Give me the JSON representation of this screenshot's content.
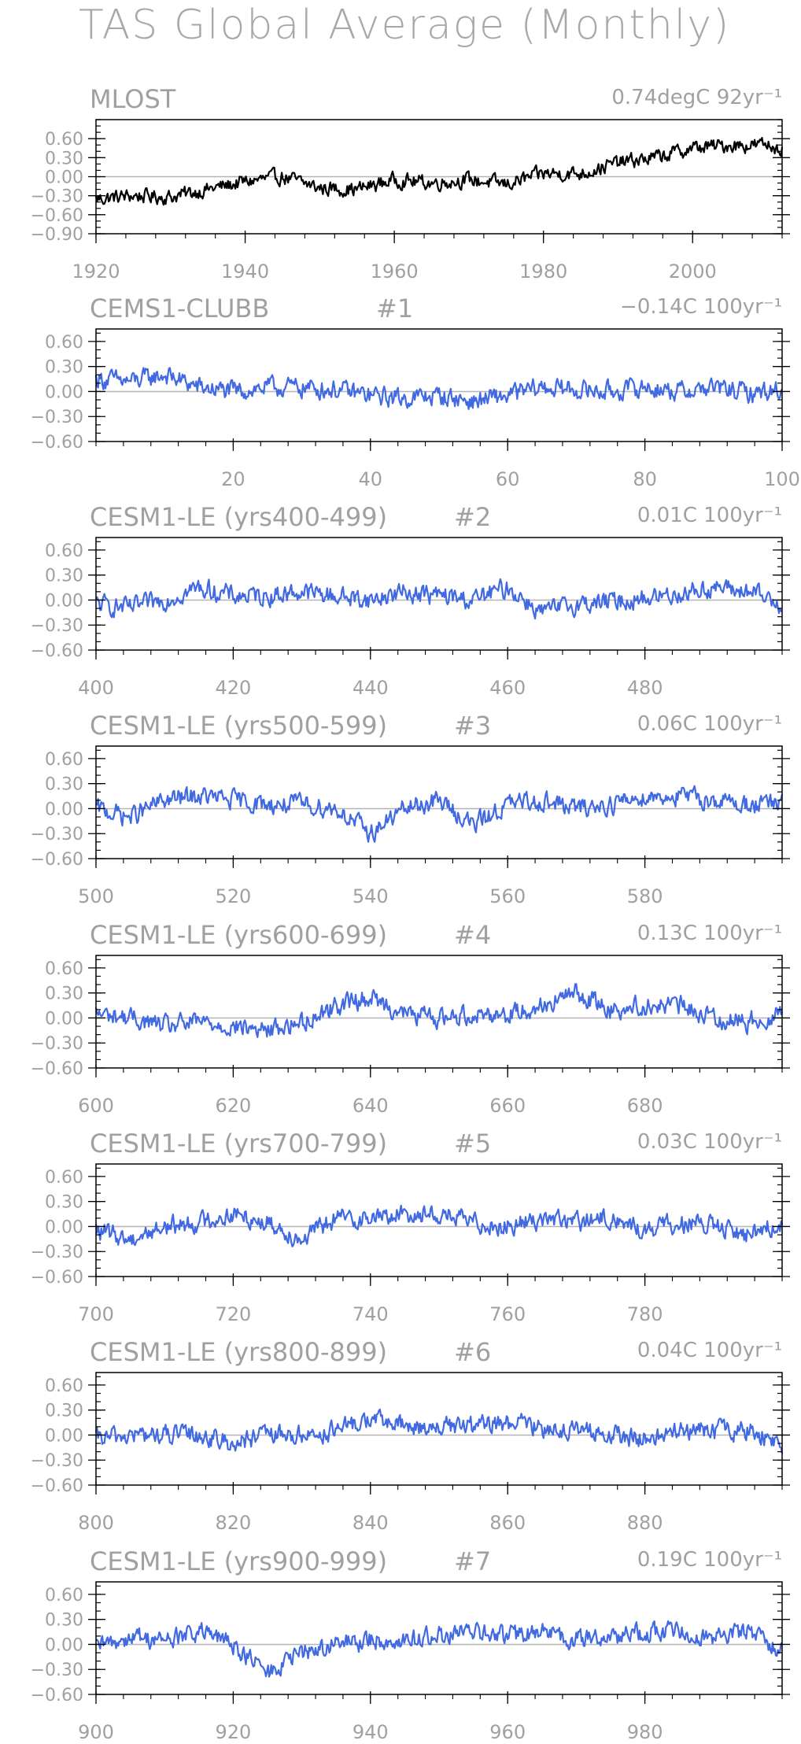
{
  "title": "TAS Global Average (Monthly)",
  "chart_data": [
    {
      "type": "line",
      "title": "MLOST",
      "trend_label": "0.74degC 92yr⁻¹",
      "color": "#000000",
      "xlim": [
        1920,
        2012
      ],
      "xticks": [
        1920,
        1940,
        1960,
        1980,
        2000
      ],
      "ylim": [
        -0.9,
        0.9
      ],
      "yticks": [
        -0.9,
        -0.6,
        -0.3,
        0.0,
        0.3,
        0.6
      ],
      "ytick_labels": [
        "−0.90",
        "−0.60",
        "−0.30",
        "0.00",
        "0.30",
        "0.60"
      ],
      "zero_line": true,
      "series": [
        {
          "x": [
            1920,
            1925,
            1930,
            1935,
            1940,
            1945,
            1950,
            1955,
            1960,
            1965,
            1970,
            1975,
            1980,
            1985,
            1990,
            1995,
            2000,
            2005,
            2010,
            2012
          ],
          "values": [
            -0.35,
            -0.3,
            -0.32,
            -0.2,
            -0.08,
            0.0,
            -0.18,
            -0.2,
            -0.05,
            -0.1,
            -0.05,
            -0.12,
            0.05,
            0.05,
            0.22,
            0.3,
            0.45,
            0.5,
            0.5,
            0.45
          ]
        }
      ]
    },
    {
      "type": "line",
      "title": "CEMS1-CLUBB",
      "member_label": "#1",
      "trend_label": "−0.14C 100yr⁻¹",
      "color": "#4169e1",
      "xlim": [
        0,
        100
      ],
      "xticks": [
        20,
        40,
        60,
        80,
        100
      ],
      "ylim": [
        -0.6,
        0.75
      ],
      "yticks": [
        -0.6,
        -0.3,
        0.0,
        0.3,
        0.6
      ],
      "ytick_labels": [
        "−0.60",
        "−0.30",
        "0.00",
        "0.30",
        "0.60"
      ],
      "zero_line": true,
      "series": [
        {
          "x": [
            0,
            5,
            10,
            15,
            20,
            25,
            30,
            35,
            40,
            45,
            50,
            55,
            60,
            65,
            70,
            75,
            80,
            85,
            90,
            95,
            100
          ],
          "values": [
            0.15,
            0.12,
            0.2,
            0.05,
            0.0,
            0.05,
            0.05,
            0.02,
            -0.05,
            -0.08,
            -0.05,
            -0.12,
            -0.05,
            0.05,
            0.02,
            0.0,
            0.05,
            0.0,
            0.05,
            -0.02,
            0.02
          ]
        }
      ]
    },
    {
      "type": "line",
      "title": "CESM1-LE (yrs400-499)",
      "member_label": "#2",
      "trend_label": "0.01C 100yr⁻¹",
      "color": "#4169e1",
      "xlim": [
        400,
        500
      ],
      "xticks": [
        400,
        420,
        440,
        460,
        480
      ],
      "ylim": [
        -0.6,
        0.75
      ],
      "yticks": [
        -0.6,
        -0.3,
        0.0,
        0.3,
        0.6
      ],
      "ytick_labels": [
        "−0.60",
        "−0.30",
        "0.00",
        "0.30",
        "0.60"
      ],
      "zero_line": true,
      "series": [
        {
          "x": [
            400,
            405,
            410,
            415,
            420,
            425,
            430,
            435,
            440,
            445,
            450,
            455,
            460,
            465,
            470,
            475,
            480,
            485,
            490,
            495,
            500
          ],
          "values": [
            -0.05,
            -0.1,
            0.0,
            0.15,
            0.05,
            0.05,
            0.1,
            0.05,
            0.0,
            0.1,
            0.05,
            0.0,
            0.15,
            -0.15,
            -0.05,
            -0.02,
            0.02,
            0.08,
            0.15,
            0.1,
            -0.05
          ]
        }
      ]
    },
    {
      "type": "line",
      "title": "CESM1-LE (yrs500-599)",
      "member_label": "#3",
      "trend_label": "0.06C 100yr⁻¹",
      "color": "#4169e1",
      "xlim": [
        500,
        600
      ],
      "xticks": [
        500,
        520,
        540,
        560,
        580
      ],
      "ylim": [
        -0.6,
        0.75
      ],
      "yticks": [
        -0.6,
        -0.3,
        0.0,
        0.3,
        0.6
      ],
      "ytick_labels": [
        "−0.60",
        "−0.30",
        "0.00",
        "0.30",
        "0.60"
      ],
      "zero_line": true,
      "series": [
        {
          "x": [
            500,
            505,
            510,
            515,
            520,
            525,
            530,
            535,
            540,
            545,
            550,
            555,
            560,
            565,
            570,
            575,
            580,
            585,
            590,
            595,
            600
          ],
          "values": [
            0.0,
            -0.1,
            0.1,
            0.15,
            0.1,
            0.05,
            0.05,
            0.0,
            -0.3,
            0.0,
            0.1,
            -0.2,
            0.05,
            0.1,
            0.0,
            0.05,
            0.15,
            0.15,
            0.1,
            0.05,
            0.05
          ]
        }
      ]
    },
    {
      "type": "line",
      "title": "CESM1-LE (yrs600-699)",
      "member_label": "#4",
      "trend_label": "0.13C 100yr⁻¹",
      "color": "#4169e1",
      "xlim": [
        600,
        700
      ],
      "xticks": [
        600,
        620,
        640,
        660,
        680
      ],
      "ylim": [
        -0.6,
        0.75
      ],
      "yticks": [
        -0.6,
        -0.3,
        0.0,
        0.3,
        0.6
      ],
      "ytick_labels": [
        "−0.60",
        "−0.30",
        "0.00",
        "0.30",
        "0.60"
      ],
      "zero_line": true,
      "series": [
        {
          "x": [
            600,
            605,
            610,
            615,
            620,
            625,
            630,
            635,
            640,
            645,
            650,
            655,
            660,
            665,
            670,
            675,
            680,
            685,
            690,
            695,
            700
          ],
          "values": [
            0.05,
            0.0,
            -0.1,
            -0.05,
            -0.1,
            -0.15,
            -0.05,
            0.15,
            0.25,
            0.05,
            0.0,
            0.05,
            0.05,
            0.15,
            0.3,
            0.1,
            0.15,
            0.15,
            0.0,
            -0.05,
            0.05
          ]
        }
      ]
    },
    {
      "type": "line",
      "title": "CESM1-LE (yrs700-799)",
      "member_label": "#5",
      "trend_label": "0.03C 100yr⁻¹",
      "color": "#4169e1",
      "xlim": [
        700,
        800
      ],
      "xticks": [
        700,
        720,
        740,
        760,
        780
      ],
      "ylim": [
        -0.6,
        0.75
      ],
      "yticks": [
        -0.6,
        -0.3,
        0.0,
        0.3,
        0.6
      ],
      "ytick_labels": [
        "−0.60",
        "−0.30",
        "0.00",
        "0.30",
        "0.60"
      ],
      "zero_line": true,
      "series": [
        {
          "x": [
            700,
            705,
            710,
            715,
            720,
            725,
            730,
            735,
            740,
            745,
            750,
            755,
            760,
            765,
            770,
            775,
            780,
            785,
            790,
            795,
            800
          ],
          "values": [
            -0.05,
            -0.15,
            0.0,
            0.05,
            0.15,
            0.05,
            -0.15,
            0.1,
            0.1,
            0.15,
            0.15,
            0.05,
            0.0,
            0.1,
            0.05,
            0.1,
            -0.05,
            0.05,
            0.0,
            -0.1,
            0.05
          ]
        }
      ]
    },
    {
      "type": "line",
      "title": "CESM1-LE (yrs800-899)",
      "member_label": "#6",
      "trend_label": "0.04C 100yr⁻¹",
      "color": "#4169e1",
      "xlim": [
        800,
        900
      ],
      "xticks": [
        800,
        820,
        840,
        860,
        880
      ],
      "ylim": [
        -0.6,
        0.75
      ],
      "yticks": [
        -0.6,
        -0.3,
        0.0,
        0.3,
        0.6
      ],
      "ytick_labels": [
        "−0.60",
        "−0.30",
        "0.00",
        "0.30",
        "0.60"
      ],
      "zero_line": true,
      "series": [
        {
          "x": [
            800,
            805,
            810,
            815,
            820,
            825,
            830,
            835,
            840,
            845,
            850,
            855,
            860,
            865,
            870,
            875,
            880,
            885,
            890,
            895,
            900
          ],
          "values": [
            -0.05,
            0.0,
            0.0,
            0.0,
            -0.1,
            0.0,
            0.0,
            0.05,
            0.2,
            0.1,
            0.1,
            0.1,
            0.15,
            0.1,
            0.05,
            0.0,
            -0.05,
            0.05,
            0.05,
            0.05,
            -0.1
          ]
        }
      ]
    },
    {
      "type": "line",
      "title": "CESM1-LE (yrs900-999)",
      "member_label": "#7",
      "trend_label": "0.19C 100yr⁻¹",
      "color": "#4169e1",
      "xlim": [
        900,
        1000
      ],
      "xticks": [
        900,
        920,
        940,
        960,
        980
      ],
      "ylim": [
        -0.6,
        0.75
      ],
      "yticks": [
        -0.6,
        -0.3,
        0.0,
        0.3,
        0.6
      ],
      "ytick_labels": [
        "−0.60",
        "−0.30",
        "0.00",
        "0.30",
        "0.60"
      ],
      "zero_line": true,
      "series": [
        {
          "x": [
            900,
            905,
            910,
            915,
            920,
            925,
            930,
            935,
            940,
            945,
            950,
            955,
            960,
            965,
            970,
            975,
            980,
            985,
            990,
            995,
            1000
          ],
          "values": [
            -0.05,
            0.1,
            0.05,
            0.15,
            0.0,
            -0.35,
            -0.1,
            0.0,
            0.05,
            0.05,
            0.1,
            0.15,
            0.1,
            0.15,
            0.05,
            0.1,
            0.15,
            0.15,
            0.1,
            0.15,
            -0.05
          ]
        }
      ]
    }
  ]
}
